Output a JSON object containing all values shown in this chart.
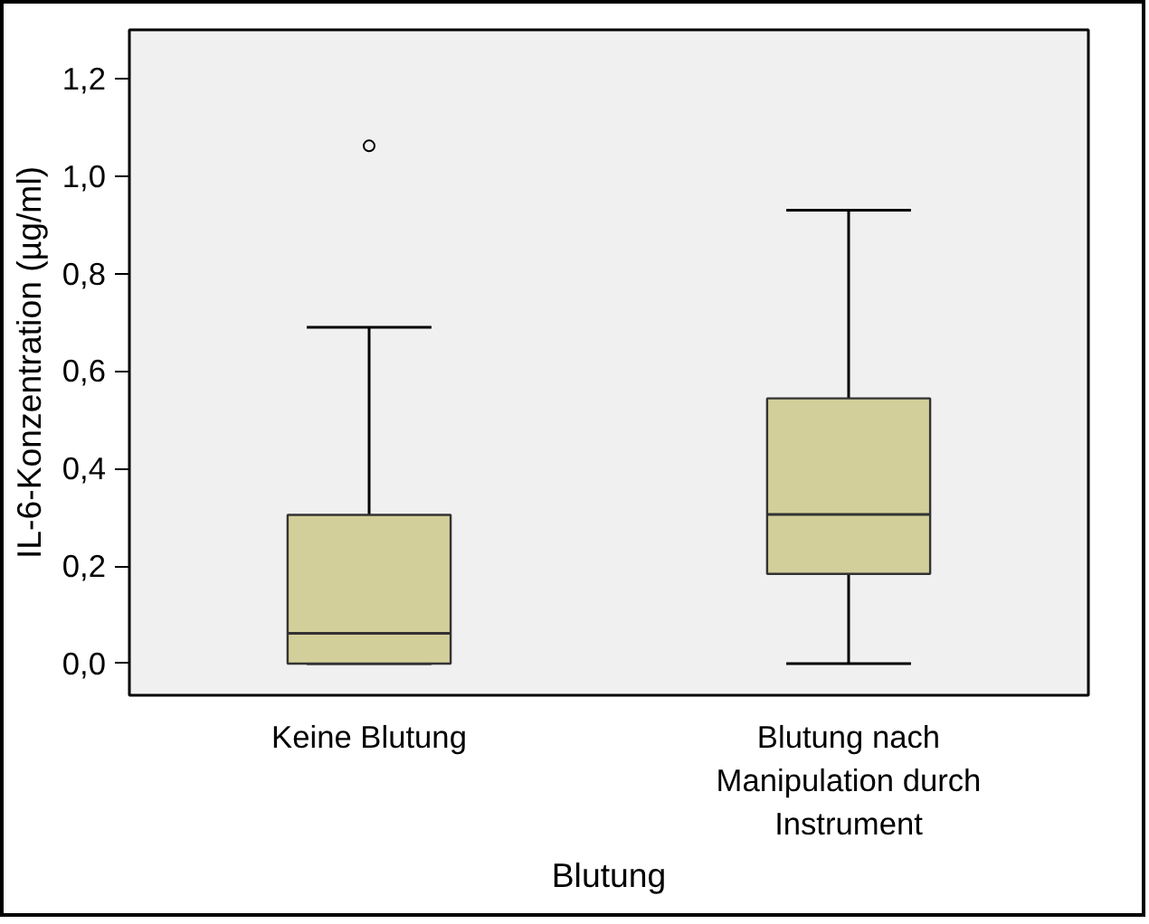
{
  "chart_data": {
    "type": "box",
    "xlabel": "Blutung",
    "ylabel": "IL-6-Konzentration (µg/ml)",
    "categories": [
      "Keine Blutung",
      "Blutung nach Manipulation durch Instrument"
    ],
    "color": "#d3cf9a",
    "boxes": [
      {
        "low": 0.0,
        "q1": 0.0,
        "median": 0.062,
        "q3": 0.305,
        "high": 0.69,
        "outliers": [
          1.062
        ]
      },
      {
        "low": 0.0,
        "q1": 0.184,
        "median": 0.306,
        "q3": 0.544,
        "high": 0.93
      }
    ],
    "ylim": [
      -0.065,
      1.3
    ],
    "yticks": [
      {
        "value": 0,
        "label": "0,0"
      },
      {
        "value": 0.2,
        "label": "0,2"
      },
      {
        "value": 0.4,
        "label": "0,4"
      },
      {
        "value": 0.6,
        "label": "0,6"
      },
      {
        "value": 0.8,
        "label": "0,8"
      },
      {
        "value": 1.0,
        "label": "1,0"
      },
      {
        "value": 1.2,
        "label": "1,2"
      }
    ],
    "grid": false
  }
}
